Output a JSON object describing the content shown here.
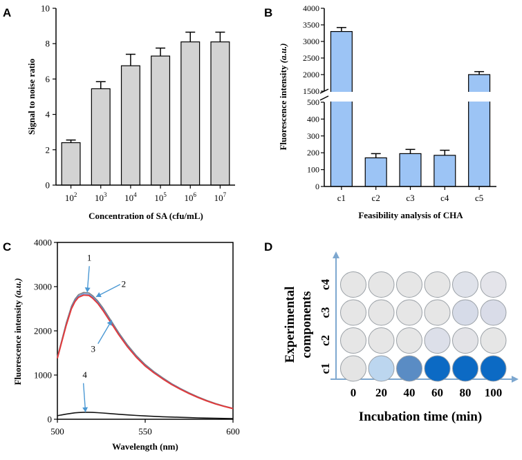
{
  "panels": {
    "a": {
      "letter": "A"
    },
    "b": {
      "letter": "B"
    },
    "c": {
      "letter": "C"
    },
    "d": {
      "letter": "D"
    }
  },
  "colors": {
    "bar_gray": "#d3d3d3",
    "bar_blue": "#9cc4f5",
    "curve_red": "#e23a3a",
    "curve_blue": "#5b8fd6",
    "arrow_blue": "#4a98d4",
    "axis_blue": "#7da7cf"
  },
  "chart_data": [
    {
      "id": "a",
      "type": "bar",
      "title": "",
      "xlabel": "Concentration of SA (cfu/mL)",
      "ylabel": "Signal to noise ratio",
      "ylim": [
        0,
        10
      ],
      "yticks": [
        0,
        2,
        4,
        6,
        8,
        10
      ],
      "categories": [
        {
          "base": "10",
          "exp": "2"
        },
        {
          "base": "10",
          "exp": "3"
        },
        {
          "base": "10",
          "exp": "4"
        },
        {
          "base": "10",
          "exp": "5"
        },
        {
          "base": "10",
          "exp": "6"
        },
        {
          "base": "10",
          "exp": "7"
        }
      ],
      "values": [
        2.4,
        5.45,
        6.75,
        7.3,
        8.1,
        8.1
      ],
      "errors": [
        0.15,
        0.4,
        0.65,
        0.45,
        0.55,
        0.55
      ]
    },
    {
      "id": "b",
      "type": "bar",
      "title": "",
      "xlabel": "Feasibility analysis of CHA",
      "ylabel": "Fluorescence intensity",
      "ylabel_unit": "(a.u.)",
      "broken_axis": true,
      "lower_range": [
        0,
        500
      ],
      "upper_range": [
        1500,
        4000
      ],
      "yticks_lower": [
        0,
        100,
        200,
        300,
        400,
        500
      ],
      "yticks_upper": [
        1500,
        2000,
        2500,
        3000,
        3500,
        4000
      ],
      "categories": [
        "c1",
        "c2",
        "c3",
        "c4",
        "c5"
      ],
      "values": [
        3300,
        170,
        195,
        185,
        2000
      ],
      "errors": [
        120,
        25,
        25,
        30,
        90
      ]
    },
    {
      "id": "c",
      "type": "line",
      "title": "",
      "xlabel": "Wavelength (nm)",
      "ylabel": "Fluorescence intensity",
      "ylabel_unit": "(a.u.)",
      "xlim": [
        500,
        600
      ],
      "ylim": [
        0,
        4000
      ],
      "xticks": [
        500,
        550,
        600
      ],
      "yticks": [
        0,
        1000,
        2000,
        3000,
        4000
      ],
      "x": [
        500,
        502,
        505,
        508,
        510,
        512,
        515,
        518,
        520,
        523,
        526,
        530,
        535,
        540,
        545,
        550,
        555,
        560,
        565,
        570,
        575,
        580,
        585,
        590,
        595,
        600
      ],
      "series": [
        {
          "name": "1",
          "values": [
            1420,
            1720,
            2180,
            2560,
            2720,
            2820,
            2870,
            2860,
            2800,
            2680,
            2520,
            2270,
            1960,
            1680,
            1440,
            1240,
            1080,
            940,
            810,
            700,
            600,
            510,
            430,
            360,
            300,
            250
          ]
        },
        {
          "name": "2",
          "values": [
            1400,
            1700,
            2150,
            2530,
            2690,
            2790,
            2840,
            2830,
            2770,
            2650,
            2490,
            2240,
            1935,
            1655,
            1420,
            1220,
            1065,
            925,
            800,
            690,
            590,
            500,
            420,
            352,
            294,
            245
          ]
        },
        {
          "name": "3",
          "values": [
            1380,
            1680,
            2120,
            2500,
            2660,
            2760,
            2810,
            2800,
            2740,
            2620,
            2460,
            2215,
            1910,
            1635,
            1400,
            1205,
            1050,
            912,
            788,
            680,
            582,
            494,
            415,
            347,
            290,
            240
          ]
        },
        {
          "name": "4",
          "values": [
            80,
            95,
            115,
            135,
            145,
            152,
            158,
            158,
            155,
            148,
            140,
            128,
            112,
            98,
            86,
            75,
            66,
            57,
            50,
            43,
            37,
            32,
            27,
            23,
            19,
            16
          ]
        }
      ],
      "annotations": [
        {
          "label": "1",
          "target_x": 517,
          "target_y": 2870
        },
        {
          "label": "2",
          "target_x": 522,
          "target_y": 2770
        },
        {
          "label": "3",
          "target_x": 531,
          "target_y": 2240
        },
        {
          "label": "4",
          "target_x": 516,
          "target_y": 160
        }
      ]
    },
    {
      "id": "d",
      "type": "heatmap",
      "title": "",
      "xlabel": "Incubation time (min)",
      "ylabel_line1": "Experimental",
      "ylabel_line2": "components",
      "columns": [
        "0",
        "20",
        "40",
        "60",
        "80",
        "100"
      ],
      "rows": [
        "c4",
        "c3",
        "c2",
        "c1"
      ],
      "cell_colors": [
        [
          "#e6e6e6",
          "#e6e6e6",
          "#e6e6e6",
          "#e6e6e6",
          "#dfe2ea",
          "#e4e4ea"
        ],
        [
          "#e6e6e6",
          "#e6e6e6",
          "#e6e6e6",
          "#e6e6e6",
          "#d6dbe8",
          "#d9dce8"
        ],
        [
          "#e6e6e6",
          "#e6e6e6",
          "#e6e6e6",
          "#dcdfe9",
          "#e3e3e7",
          "#e6e6e6"
        ],
        [
          "#e4e4e4",
          "#bcd6ef",
          "#5a8cc4",
          "#0c6ac4",
          "#0c6ac4",
          "#0c6ac4"
        ]
      ]
    }
  ]
}
